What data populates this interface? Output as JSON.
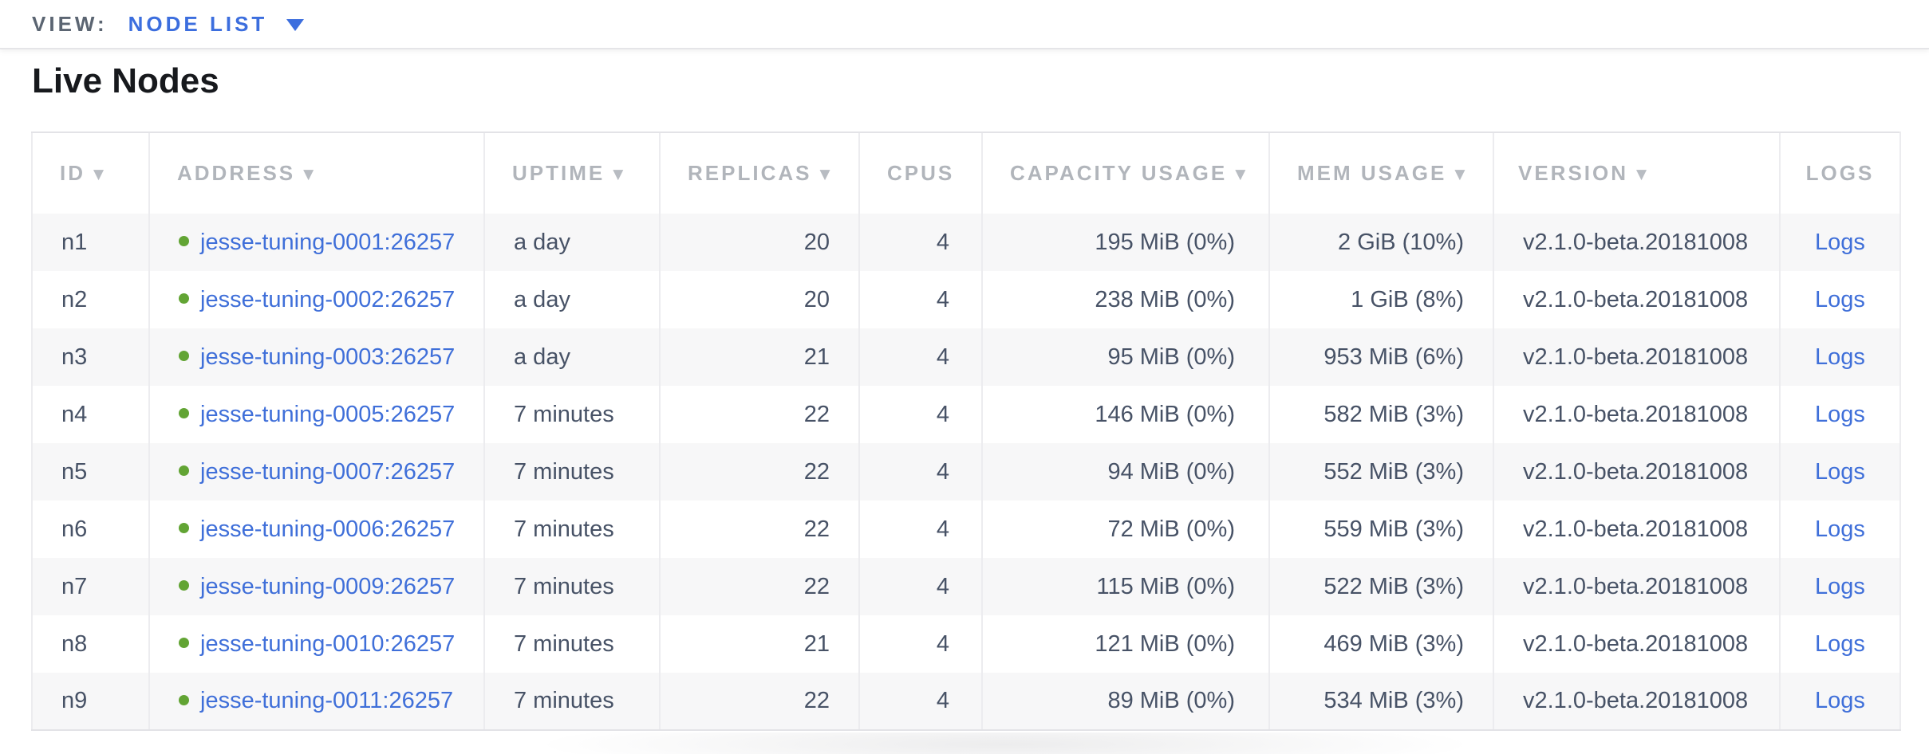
{
  "view_bar": {
    "label": "VIEW:",
    "selected": "NODE LIST"
  },
  "page": {
    "title": "Live Nodes"
  },
  "table": {
    "columns": [
      {
        "key": "id",
        "label": "ID",
        "sortable": true,
        "align": "left"
      },
      {
        "key": "address",
        "label": "ADDRESS",
        "sortable": true,
        "align": "left"
      },
      {
        "key": "uptime",
        "label": "UPTIME",
        "sortable": true,
        "align": "left"
      },
      {
        "key": "replicas",
        "label": "REPLICAS",
        "sortable": true,
        "align": "right"
      },
      {
        "key": "cpus",
        "label": "CPUS",
        "sortable": false,
        "align": "right"
      },
      {
        "key": "capacity",
        "label": "CAPACITY USAGE",
        "sortable": true,
        "align": "right"
      },
      {
        "key": "mem",
        "label": "MEM USAGE",
        "sortable": true,
        "align": "right"
      },
      {
        "key": "version",
        "label": "VERSION",
        "sortable": true,
        "align": "left"
      },
      {
        "key": "logs",
        "label": "LOGS",
        "sortable": false,
        "align": "center"
      }
    ],
    "rows": [
      {
        "id": "n1",
        "address": "jesse-tuning-0001:26257",
        "status": "live",
        "uptime": "a day",
        "replicas": "20",
        "cpus": "4",
        "capacity": "195 MiB (0%)",
        "mem": "2 GiB (10%)",
        "version": "v2.1.0-beta.20181008",
        "logs": "Logs"
      },
      {
        "id": "n2",
        "address": "jesse-tuning-0002:26257",
        "status": "live",
        "uptime": "a day",
        "replicas": "20",
        "cpus": "4",
        "capacity": "238 MiB (0%)",
        "mem": "1 GiB (8%)",
        "version": "v2.1.0-beta.20181008",
        "logs": "Logs"
      },
      {
        "id": "n3",
        "address": "jesse-tuning-0003:26257",
        "status": "live",
        "uptime": "a day",
        "replicas": "21",
        "cpus": "4",
        "capacity": "95 MiB (0%)",
        "mem": "953 MiB (6%)",
        "version": "v2.1.0-beta.20181008",
        "logs": "Logs"
      },
      {
        "id": "n4",
        "address": "jesse-tuning-0005:26257",
        "status": "live",
        "uptime": "7 minutes",
        "replicas": "22",
        "cpus": "4",
        "capacity": "146 MiB (0%)",
        "mem": "582 MiB (3%)",
        "version": "v2.1.0-beta.20181008",
        "logs": "Logs"
      },
      {
        "id": "n5",
        "address": "jesse-tuning-0007:26257",
        "status": "live",
        "uptime": "7 minutes",
        "replicas": "22",
        "cpus": "4",
        "capacity": "94 MiB (0%)",
        "mem": "552 MiB (3%)",
        "version": "v2.1.0-beta.20181008",
        "logs": "Logs"
      },
      {
        "id": "n6",
        "address": "jesse-tuning-0006:26257",
        "status": "live",
        "uptime": "7 minutes",
        "replicas": "22",
        "cpus": "4",
        "capacity": "72 MiB (0%)",
        "mem": "559 MiB (3%)",
        "version": "v2.1.0-beta.20181008",
        "logs": "Logs"
      },
      {
        "id": "n7",
        "address": "jesse-tuning-0009:26257",
        "status": "live",
        "uptime": "7 minutes",
        "replicas": "22",
        "cpus": "4",
        "capacity": "115 MiB (0%)",
        "mem": "522 MiB (3%)",
        "version": "v2.1.0-beta.20181008",
        "logs": "Logs"
      },
      {
        "id": "n8",
        "address": "jesse-tuning-0010:26257",
        "status": "live",
        "uptime": "7 minutes",
        "replicas": "21",
        "cpus": "4",
        "capacity": "121 MiB (0%)",
        "mem": "469 MiB (3%)",
        "version": "v2.1.0-beta.20181008",
        "logs": "Logs"
      },
      {
        "id": "n9",
        "address": "jesse-tuning-0011:26257",
        "status": "live",
        "uptime": "7 minutes",
        "replicas": "22",
        "cpus": "4",
        "capacity": "89 MiB (0%)",
        "mem": "534 MiB (3%)",
        "version": "v2.1.0-beta.20181008",
        "logs": "Logs"
      }
    ]
  },
  "colors": {
    "accent_blue": "#3c6ede",
    "link_blue": "#3f6fd9",
    "live_green": "#62a434",
    "header_gray": "#b1b5bb",
    "cell_text": "#475266",
    "row_stripe": "#f7f7f8",
    "border": "#ececef"
  }
}
